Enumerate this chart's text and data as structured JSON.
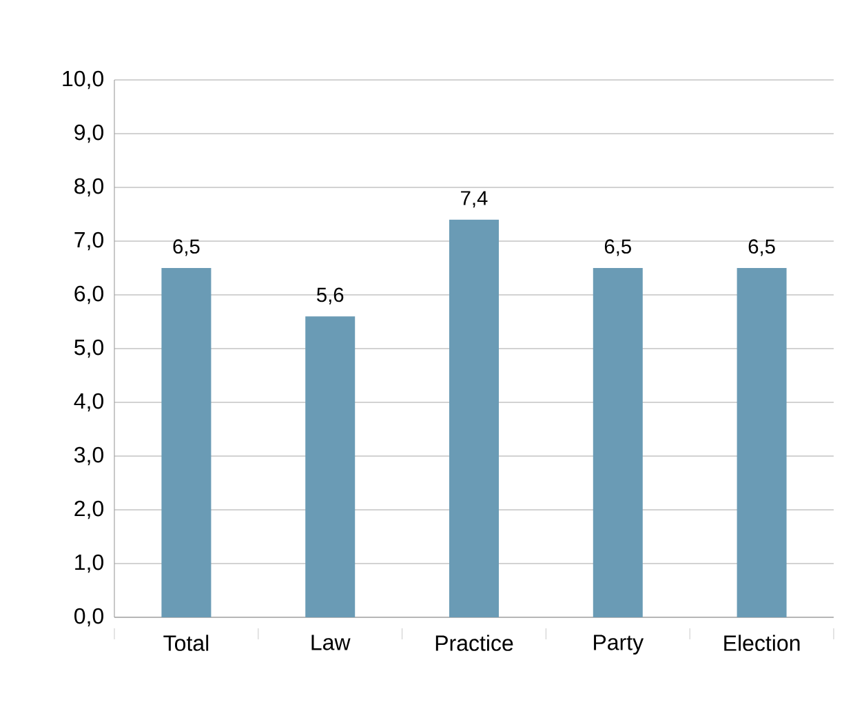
{
  "chart_data": {
    "type": "bar",
    "categories": [
      "Total",
      "Law",
      "Practice",
      "Party",
      "Election"
    ],
    "values": [
      6.5,
      5.6,
      7.4,
      6.5,
      6.5
    ],
    "value_labels": [
      "6,5",
      "5,6",
      "7,4",
      "6,5",
      "6,5"
    ],
    "color": "#6a9bb5",
    "ylim": [
      0,
      10
    ],
    "yticks": [
      {
        "value": 0,
        "label": "0,0"
      },
      {
        "value": 1,
        "label": "1,0"
      },
      {
        "value": 2,
        "label": "2,0"
      },
      {
        "value": 3,
        "label": "3,0"
      },
      {
        "value": 4,
        "label": "4,0"
      },
      {
        "value": 5,
        "label": "5,0"
      },
      {
        "value": 6,
        "label": "6,0"
      },
      {
        "value": 7,
        "label": "7,0"
      },
      {
        "value": 8,
        "label": "8,0"
      },
      {
        "value": 9,
        "label": "9,0"
      },
      {
        "value": 10,
        "label": "10,0"
      }
    ],
    "grid": "y"
  }
}
